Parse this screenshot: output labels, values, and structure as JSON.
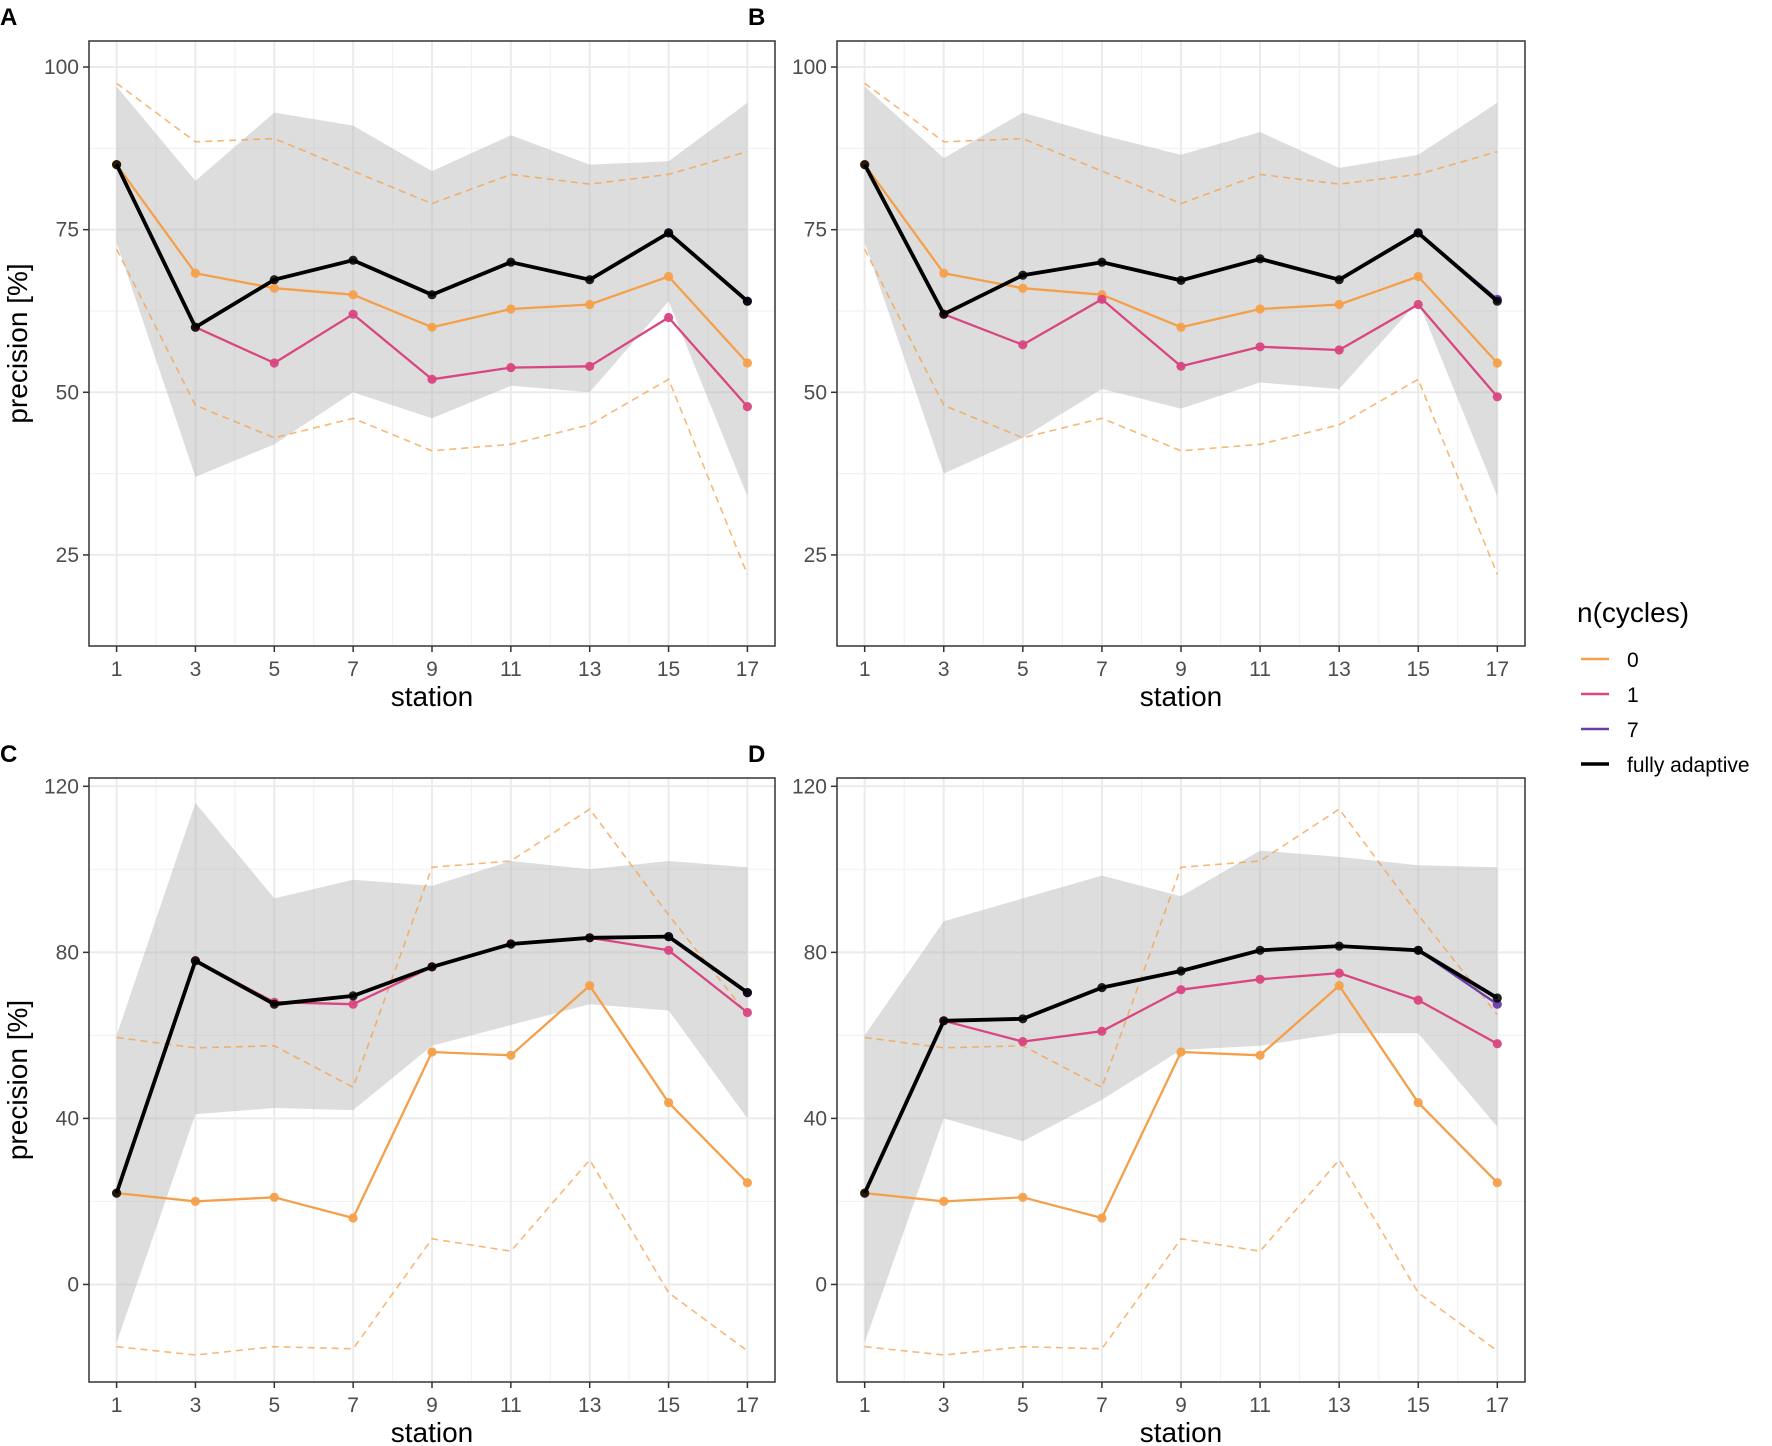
{
  "legend": {
    "title": "n(cycles)",
    "items": [
      {
        "label": "0",
        "color": "#F4A04A"
      },
      {
        "label": "1",
        "color": "#D94681"
      },
      {
        "label": "7",
        "color": "#6A3DA8"
      },
      {
        "label": "fully adaptive",
        "color": "#000000"
      }
    ]
  },
  "chart_data": [
    {
      "panel": "A",
      "type": "line",
      "xlabel": "station",
      "ylabel": "precision [%]",
      "x": [
        1,
        3,
        5,
        7,
        9,
        11,
        13,
        15,
        17
      ],
      "xlim": [
        0.3,
        17.7
      ],
      "ylim": [
        11,
        104
      ],
      "yticks": [
        25,
        50,
        75,
        100
      ],
      "yticks_minor": [
        37.5,
        62.5,
        87.5
      ],
      "ribbon": {
        "lower": [
          73,
          37,
          42,
          50,
          46,
          51,
          50,
          64,
          34
        ],
        "upper": [
          97,
          82.5,
          93,
          91,
          84,
          89.5,
          85,
          85.5,
          94.5
        ]
      },
      "dashed_lower": [
        72,
        48,
        43,
        46,
        41,
        42,
        45,
        52,
        22
      ],
      "dashed_upper": [
        97.5,
        88.5,
        89,
        84,
        79,
        83.5,
        82,
        83.5,
        87
      ],
      "series": [
        {
          "name": "0",
          "values": [
            85,
            68.3,
            66,
            65,
            60,
            62.8,
            63.5,
            67.8,
            54.5
          ]
        },
        {
          "name": "1",
          "values": [
            null,
            60,
            54.5,
            62,
            52,
            53.8,
            54,
            61.5,
            47.8
          ]
        },
        {
          "name": "7",
          "values": [
            null,
            null,
            null,
            null,
            null,
            null,
            null,
            74.5,
            64
          ]
        },
        {
          "name": "fully adaptive",
          "values": [
            85,
            60,
            67.3,
            70.3,
            65,
            70,
            67.3,
            74.5,
            64
          ]
        }
      ]
    },
    {
      "panel": "B",
      "type": "line",
      "xlabel": "station",
      "ylabel": "",
      "x": [
        1,
        3,
        5,
        7,
        9,
        11,
        13,
        15,
        17
      ],
      "xlim": [
        0.3,
        17.7
      ],
      "ylim": [
        11,
        104
      ],
      "yticks": [
        25,
        50,
        75,
        100
      ],
      "yticks_minor": [
        37.5,
        62.5,
        87.5
      ],
      "ribbon": {
        "lower": [
          73,
          37.5,
          43,
          50.5,
          47.5,
          51.5,
          50.5,
          64,
          34
        ],
        "upper": [
          97,
          86,
          93,
          89.5,
          86.5,
          90,
          84.5,
          86.5,
          94.5
        ]
      },
      "dashed_lower": [
        72,
        48,
        43,
        46,
        41,
        42,
        45,
        52,
        22
      ],
      "dashed_upper": [
        97.5,
        88.5,
        89,
        84,
        79,
        83.5,
        82,
        83.5,
        87
      ],
      "series": [
        {
          "name": "0",
          "values": [
            85,
            68.3,
            66,
            65,
            60,
            62.8,
            63.5,
            67.8,
            54.5
          ]
        },
        {
          "name": "1",
          "values": [
            null,
            62,
            57.3,
            64.3,
            54,
            57,
            56.5,
            63.5,
            49.3
          ]
        },
        {
          "name": "7",
          "values": [
            null,
            null,
            null,
            null,
            null,
            null,
            null,
            74.5,
            64.3
          ]
        },
        {
          "name": "fully adaptive",
          "values": [
            85,
            62,
            68,
            70,
            67.2,
            70.5,
            67.3,
            74.5,
            64
          ]
        }
      ]
    },
    {
      "panel": "C",
      "type": "line",
      "xlabel": "station",
      "ylabel": "precision [%]",
      "x": [
        1,
        3,
        5,
        7,
        9,
        11,
        13,
        15,
        17
      ],
      "xlim": [
        0.3,
        17.7
      ],
      "ylim": [
        -23.5,
        122
      ],
      "yticks": [
        0,
        40,
        80,
        120
      ],
      "yticks_minor": [
        20,
        60,
        100
      ],
      "ribbon": {
        "lower": [
          -14,
          41,
          42.5,
          42,
          57.5,
          62.5,
          67.5,
          66,
          40
        ],
        "upper": [
          60,
          116,
          93,
          97.5,
          96,
          102,
          100,
          102,
          100.5
        ]
      },
      "dashed_lower": [
        -15,
        -17,
        -15,
        -15.5,
        11,
        8,
        30,
        -2,
        -16
      ],
      "dashed_upper": [
        59.5,
        57,
        57.5,
        47.5,
        100.5,
        102,
        114.5,
        89,
        65
      ],
      "series": [
        {
          "name": "0",
          "values": [
            22,
            20,
            21,
            16,
            56,
            55.2,
            72,
            43.8,
            24.5
          ]
        },
        {
          "name": "1",
          "values": [
            null,
            78,
            68,
            67.5,
            76.5,
            82,
            83.5,
            80.5,
            65.5
          ]
        },
        {
          "name": "7",
          "values": [
            null,
            null,
            null,
            null,
            null,
            null,
            null,
            83.8,
            70.3
          ]
        },
        {
          "name": "fully adaptive",
          "values": [
            22,
            78,
            67.5,
            69.5,
            76.5,
            82,
            83.5,
            83.8,
            70.3
          ]
        }
      ]
    },
    {
      "panel": "D",
      "type": "line",
      "xlabel": "station",
      "ylabel": "",
      "x": [
        1,
        3,
        5,
        7,
        9,
        11,
        13,
        15,
        17
      ],
      "xlim": [
        0.3,
        17.7
      ],
      "ylim": [
        -23.5,
        122
      ],
      "yticks": [
        0,
        40,
        80,
        120
      ],
      "yticks_minor": [
        20,
        60,
        100
      ],
      "ribbon": {
        "lower": [
          -14,
          40,
          34.5,
          44.5,
          56.5,
          57.5,
          60.5,
          60.5,
          38
        ],
        "upper": [
          60,
          87.5,
          93,
          98.5,
          93.5,
          104.5,
          103,
          101,
          100.5
        ]
      },
      "dashed_lower": [
        -15,
        -17,
        -15,
        -15.5,
        11,
        8,
        30,
        -2,
        -16
      ],
      "dashed_upper": [
        59.5,
        57,
        57.5,
        47.5,
        100.5,
        102,
        114.5,
        89,
        65
      ],
      "series": [
        {
          "name": "0",
          "values": [
            22,
            20,
            21,
            16,
            56,
            55.2,
            72,
            43.8,
            24.5
          ]
        },
        {
          "name": "1",
          "values": [
            null,
            63.5,
            58.5,
            61,
            71,
            73.5,
            75,
            68.5,
            58
          ]
        },
        {
          "name": "7",
          "values": [
            null,
            null,
            null,
            null,
            null,
            null,
            null,
            80.5,
            67.5
          ]
        },
        {
          "name": "fully adaptive",
          "values": [
            22,
            63.5,
            64,
            71.5,
            75.5,
            80.5,
            81.5,
            80.5,
            69
          ]
        }
      ]
    }
  ]
}
